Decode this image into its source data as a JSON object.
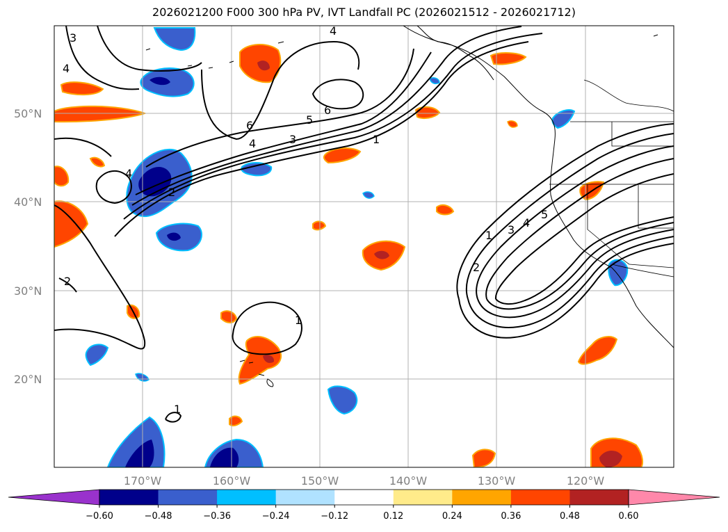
{
  "title": "2026021200 F000 300 hPa PV, IVT Landfall PC (2026021512 - 2026021712)",
  "lat_labels": [
    "50°N",
    "40°N",
    "30°N",
    "20°N"
  ],
  "lon_labels": [
    "170°W",
    "160°W",
    "150°W",
    "140°W",
    "130°W",
    "120°W"
  ],
  "colorbar": {
    "ticks": [
      "−0.60",
      "−0.48",
      "−0.36",
      "−0.24",
      "−0.12",
      "0.12",
      "0.24",
      "0.36",
      "0.48",
      "0.60"
    ],
    "colors": [
      "#9932cc",
      "#00008b",
      "#3a5fcd",
      "#00bfff",
      "#b0e2ff",
      "#ffffff",
      "#ffeb8a",
      "#ffa500",
      "#ff4500",
      "#b22222",
      "#ff88aa"
    ]
  },
  "contour_labels": [
    "4",
    "3",
    "4",
    "6",
    "5",
    "3",
    "4",
    "6",
    "4",
    "2",
    "1",
    "2",
    "1",
    "1",
    "2",
    "1",
    "3",
    "4",
    "5"
  ]
}
